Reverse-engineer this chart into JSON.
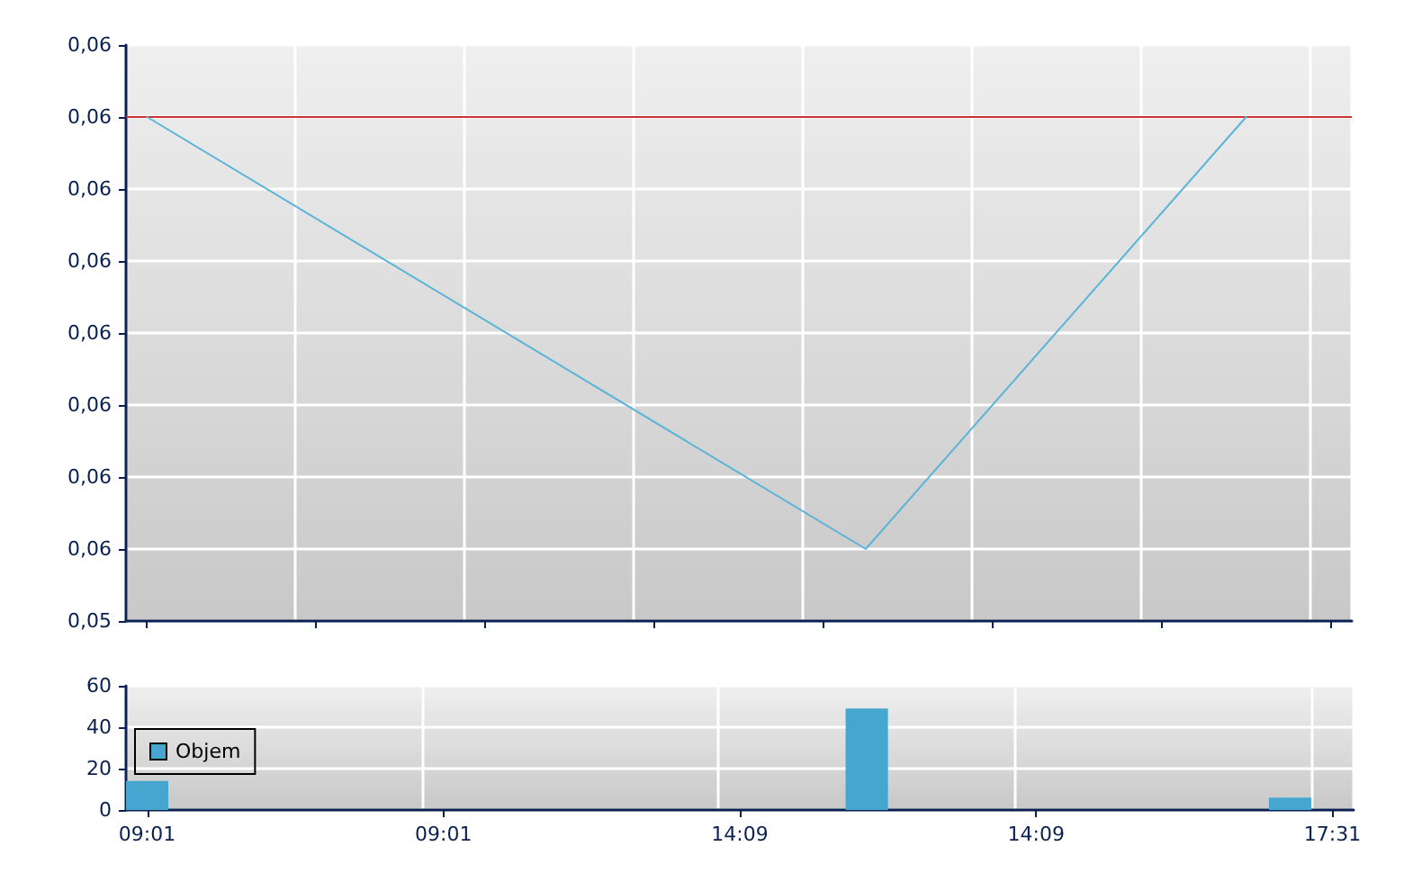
{
  "chart_data": [
    {
      "type": "line",
      "categories": [
        null,
        null,
        null,
        null,
        null,
        null,
        null,
        null,
        null,
        null,
        null,
        null,
        null,
        null,
        null,
        null,
        null,
        null,
        null,
        null,
        null,
        null,
        null,
        null,
        null,
        null,
        null,
        null,
        null
      ],
      "series": [
        {
          "color": "#5ab4d8",
          "values": [
            0.0556,
            null,
            null,
            null,
            null,
            null,
            null,
            null,
            null,
            null,
            null,
            null,
            null,
            null,
            null,
            null,
            null,
            0.055,
            null,
            null,
            null,
            null,
            null,
            null,
            null,
            null,
            0.0556,
            null,
            null
          ]
        }
      ],
      "ylim": [
        0.0549,
        0.0557
      ],
      "yticks": [
        {
          "value": 0.0549,
          "label": "0,05"
        },
        {
          "value": 0.055,
          "label": "0,06"
        },
        {
          "value": 0.0551,
          "label": "0,06"
        },
        {
          "value": 0.0552,
          "label": "0,06"
        },
        {
          "value": 0.0553,
          "label": "0,06"
        },
        {
          "value": 0.0554,
          "label": "0,06"
        },
        {
          "value": 0.0555,
          "label": "0,06"
        },
        {
          "value": 0.0556,
          "label": "0,06"
        },
        {
          "value": 0.0557,
          "label": "0,06"
        }
      ],
      "ref_lines": [
        {
          "axis": "y",
          "value": 0.0556,
          "color": "#cc3333"
        }
      ],
      "grid": true,
      "marker": "none",
      "line_style": "solid"
    },
    {
      "type": "bar",
      "categories": [
        "09:01",
        null,
        null,
        null,
        null,
        null,
        null,
        "09:01",
        null,
        null,
        null,
        null,
        null,
        null,
        "14:09",
        null,
        null,
        null,
        null,
        null,
        null,
        "14:09",
        null,
        null,
        null,
        null,
        null,
        null,
        "17:31"
      ],
      "series": [
        {
          "name": "Objem",
          "color": "#46a6d0",
          "values": [
            14,
            null,
            null,
            null,
            null,
            null,
            null,
            null,
            null,
            null,
            null,
            null,
            null,
            null,
            null,
            null,
            null,
            49,
            null,
            null,
            null,
            null,
            null,
            null,
            null,
            null,
            null,
            6,
            null
          ]
        }
      ],
      "ylim": [
        0,
        60
      ],
      "yticks": [
        0,
        20,
        40,
        60
      ],
      "grid": true,
      "legend": "left"
    }
  ]
}
